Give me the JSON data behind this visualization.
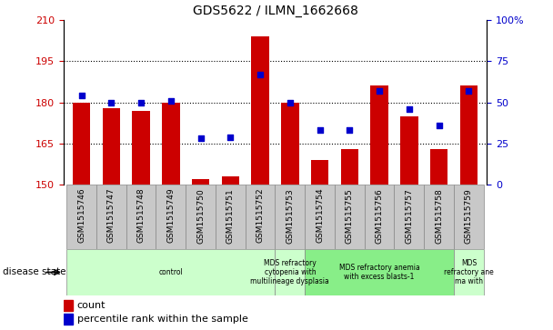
{
  "title": "GDS5622 / ILMN_1662668",
  "samples": [
    "GSM1515746",
    "GSM1515747",
    "GSM1515748",
    "GSM1515749",
    "GSM1515750",
    "GSM1515751",
    "GSM1515752",
    "GSM1515753",
    "GSM1515754",
    "GSM1515755",
    "GSM1515756",
    "GSM1515757",
    "GSM1515758",
    "GSM1515759"
  ],
  "counts": [
    180,
    178,
    177,
    180,
    152,
    153,
    204,
    180,
    159,
    163,
    186,
    175,
    163,
    186
  ],
  "percentile_ranks": [
    54,
    50,
    50,
    51,
    28,
    29,
    67,
    50,
    33,
    33,
    57,
    46,
    36,
    57
  ],
  "ylim_left": [
    150,
    210
  ],
  "ylim_right": [
    0,
    100
  ],
  "yticks_left": [
    150,
    165,
    180,
    195,
    210
  ],
  "yticks_right": [
    0,
    25,
    50,
    75,
    100
  ],
  "bar_color": "#cc0000",
  "dot_color": "#0000cc",
  "bg_sample_labels": "#c8c8c8",
  "disease_groups": [
    {
      "label": "control",
      "start": 0,
      "end": 6,
      "color": "#ccffcc"
    },
    {
      "label": "MDS refractory\ncytopenia with\nmultilineage dysplasia",
      "start": 7,
      "end": 7,
      "color": "#ccffcc"
    },
    {
      "label": "MDS refractory anemia\nwith excess blasts-1",
      "start": 8,
      "end": 12,
      "color": "#88ee88"
    },
    {
      "label": "MDS\nrefractory ane\nma with",
      "start": 13,
      "end": 13,
      "color": "#ccffcc"
    }
  ],
  "xlabel_disease": "disease state",
  "legend_count": "count",
  "legend_percentile": "percentile rank within the sample"
}
